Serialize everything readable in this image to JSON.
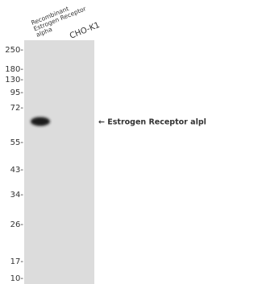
{
  "lanes": [
    {
      "label": [
        "Recombinant",
        "Estrogen Receptor",
        "alpha"
      ]
    },
    {
      "label": [
        "CHO-K1"
      ]
    }
  ],
  "markers": [
    "250-",
    "180-",
    "130-",
    "95-",
    "72-",
    "55-",
    "43-",
    "34-",
    "26-",
    "17-",
    "10-"
  ],
  "band_annotation": "← Estrogen Receptor alpha"
}
